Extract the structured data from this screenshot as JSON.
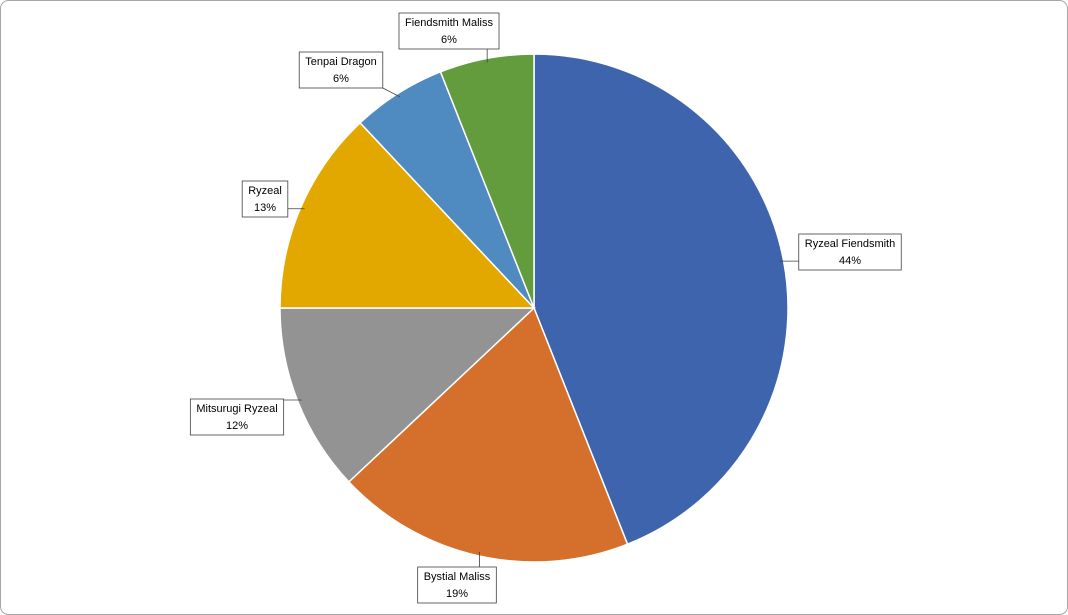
{
  "chart_data": {
    "type": "pie",
    "categories": [
      "Ryzeal Fiendsmith",
      "Bystial Maliss",
      "Mitsurugi Ryzeal",
      "Ryzeal",
      "Tenpai Dragon",
      "Fiendsmith Maliss"
    ],
    "values": [
      44,
      19,
      12,
      13,
      6,
      6
    ],
    "value_labels": [
      "44%",
      "19%",
      "12%",
      "13%",
      "6%",
      "6%"
    ],
    "colors": [
      "#3d64ad",
      "#d4702b",
      "#939393",
      "#e3a800",
      "#4f8ac0",
      "#629c3c"
    ]
  }
}
